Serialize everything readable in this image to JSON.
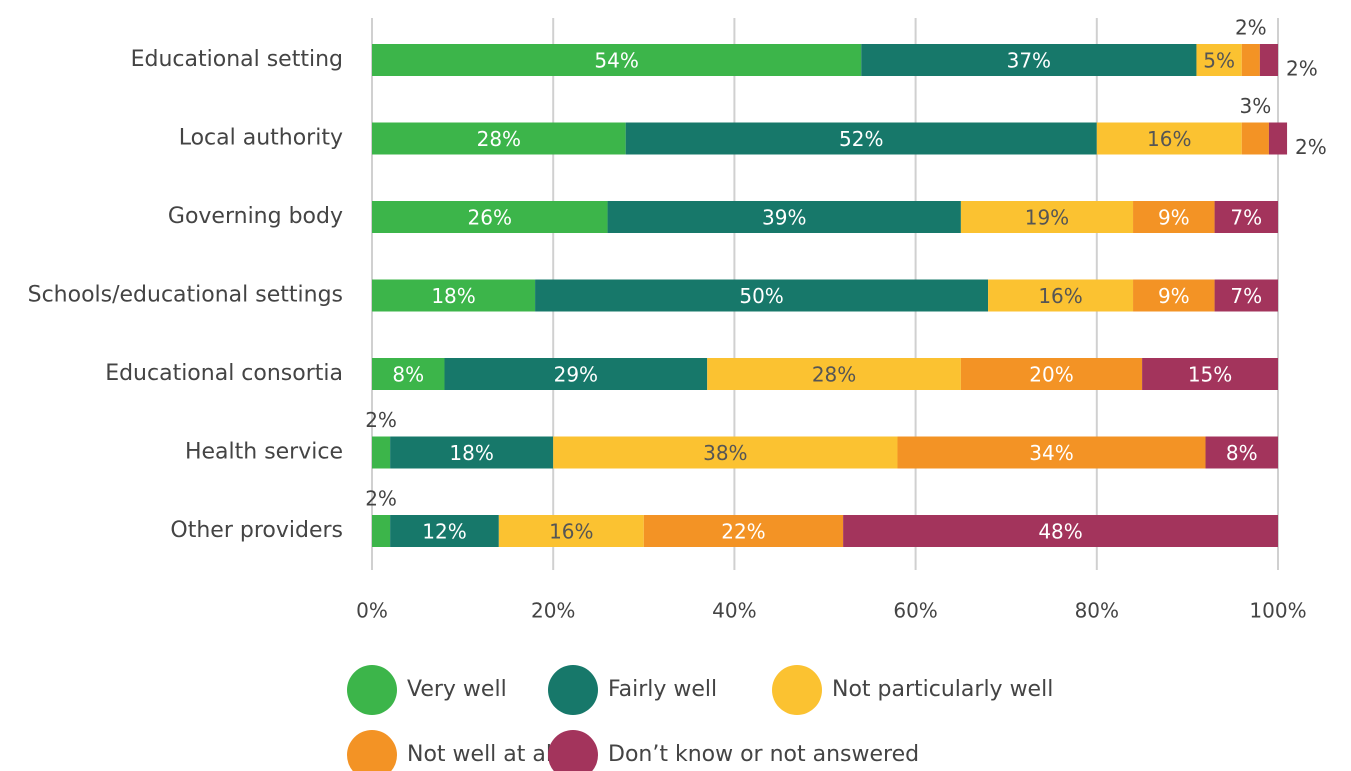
{
  "chart_data": {
    "type": "stacked_bar_horizontal",
    "categories": [
      "Educational setting",
      "Local authority",
      "Governing body",
      "Schools/educational settings",
      "Educational consortia",
      "Health service",
      "Other providers"
    ],
    "series": [
      {
        "name": "Very well",
        "color": "#3cb54a",
        "values": [
          54,
          28,
          26,
          18,
          8,
          2,
          2
        ],
        "value_labels": [
          "54%",
          "28%",
          "26%",
          "18%",
          "8%",
          "2%",
          "2%"
        ]
      },
      {
        "name": "Fairly well",
        "color": "#17786a",
        "values": [
          37,
          52,
          39,
          50,
          29,
          18,
          12
        ],
        "value_labels": [
          "37%",
          "52%",
          "39%",
          "50%",
          "29%",
          "18%",
          "12%"
        ]
      },
      {
        "name": "Not particularly well",
        "color": "#fbc231",
        "values": [
          5,
          16,
          19,
          16,
          28,
          38,
          16
        ],
        "value_labels": [
          "5%",
          "16%",
          "19%",
          "16%",
          "28%",
          "38%",
          "16%"
        ]
      },
      {
        "name": "Not well at all",
        "color": "#f39325",
        "values": [
          2,
          3,
          9,
          9,
          20,
          34,
          22
        ],
        "value_labels": [
          "2%",
          "3%",
          "9%",
          "9%",
          "20%",
          "34%",
          "22%"
        ]
      },
      {
        "name": "Don’t know or not answered",
        "color": "#a3345c",
        "values": [
          2,
          2,
          7,
          7,
          15,
          8,
          48
        ],
        "value_labels": [
          "2%",
          "2%",
          "7%",
          "7%",
          "15%",
          "8%",
          "48%"
        ]
      }
    ],
    "xlim": [
      0,
      100
    ],
    "xticks": [
      {
        "value": 0,
        "label": "0%"
      },
      {
        "value": 20,
        "label": "20%"
      },
      {
        "value": 40,
        "label": "40%"
      },
      {
        "value": 60,
        "label": "60%"
      },
      {
        "value": 80,
        "label": "80%"
      },
      {
        "value": 100,
        "label": "100%"
      }
    ],
    "grid": true,
    "legend": "bottom"
  }
}
